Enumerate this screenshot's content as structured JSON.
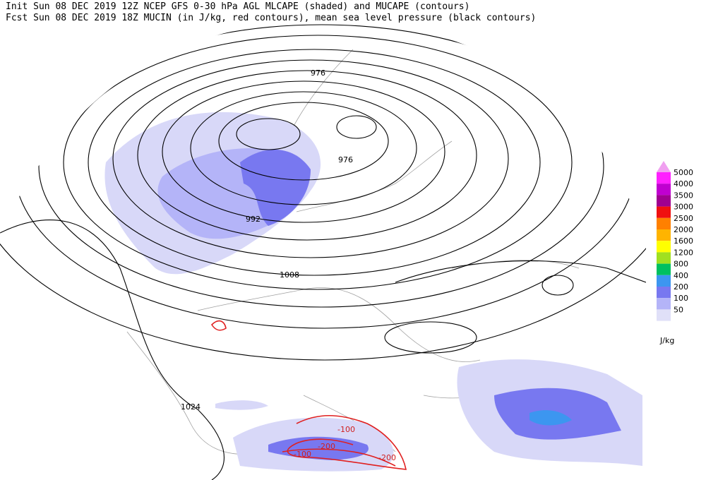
{
  "header": {
    "line1": "Init  Sun 08 DEC 2019 12Z  NCEP GFS 0-30 hPa AGL MLCAPE (shaded) and MUCAPE (contours)",
    "line2": "Fcst Sun 08 DEC 2019 18Z  MUCIN (in J/kg, red contours), mean sea level pressure (black contours)"
  },
  "contour_labels": {
    "pressure": [
      "976",
      "976",
      "992",
      "1008",
      "1024"
    ],
    "mucin": [
      "-100",
      "-200",
      "-100",
      "-200"
    ]
  },
  "legend": {
    "unit": "J/kg",
    "levels": [
      {
        "label": "5000",
        "color": "#ff20ff"
      },
      {
        "label": "4000",
        "color": "#c000d0"
      },
      {
        "label": "3500",
        "color": "#a00090"
      },
      {
        "label": "3000",
        "color": "#f01010"
      },
      {
        "label": "2500",
        "color": "#ff8000"
      },
      {
        "label": "2000",
        "color": "#ffb400"
      },
      {
        "label": "1600",
        "color": "#ffff00"
      },
      {
        "label": "1200",
        "color": "#a0e020"
      },
      {
        "label": "800",
        "color": "#00c060"
      },
      {
        "label": "400",
        "color": "#3c96f0"
      },
      {
        "label": "200",
        "color": "#7878f0"
      },
      {
        "label": "100",
        "color": "#b4b4f8"
      },
      {
        "label": "50",
        "color": "#e0e0f8"
      }
    ]
  }
}
